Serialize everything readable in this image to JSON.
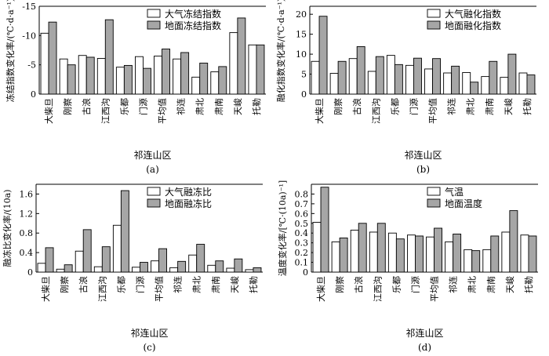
{
  "colors": {
    "series_a": "#ffffff",
    "series_b": "#a6a6a6",
    "stroke": "#000000"
  },
  "chart_data": [
    {
      "type": "bar",
      "panel_label": "(a)",
      "xlabel": "祁连山区",
      "ylabel": "冻结指数变化率/(℃·d·a⁻¹)",
      "ylim": [
        0,
        -15
      ],
      "yticks": [
        0,
        -5,
        -10,
        -15
      ],
      "y_reversed": true,
      "categories": [
        "大柴旦",
        "刚察",
        "古浪",
        "江西沟",
        "乐都",
        "门源",
        "平均值",
        "祁连",
        "肃北",
        "肃南",
        "天峻",
        "托勒"
      ],
      "series": [
        {
          "name": "大气冻结指数",
          "values": [
            -10.4,
            -6.0,
            -6.6,
            -6.1,
            -4.6,
            -6.4,
            -6.5,
            -6.0,
            -2.9,
            -3.8,
            -10.5,
            -8.4
          ]
        },
        {
          "name": "地面冻结指数",
          "values": [
            -12.3,
            -5.0,
            -6.3,
            -12.7,
            -4.9,
            -4.4,
            -7.7,
            -7.1,
            -5.3,
            -4.7,
            -13.0,
            -8.4
          ]
        }
      ],
      "legend": "top-right"
    },
    {
      "type": "bar",
      "panel_label": "(b)",
      "xlabel": "祁连山区",
      "ylabel": "融化指数变化率/(℃·d·a⁻¹)",
      "ylim": [
        0,
        22
      ],
      "yticks": [
        0,
        5,
        10,
        15,
        20
      ],
      "categories": [
        "大柴旦",
        "刚察",
        "古浪",
        "江西沟",
        "乐都",
        "门源",
        "平均值",
        "祁连",
        "肃北",
        "肃南",
        "天峻",
        "托勒"
      ],
      "series": [
        {
          "name": "大气融化指数",
          "values": [
            8.2,
            5.2,
            8.9,
            5.7,
            9.7,
            7.2,
            6.3,
            5.3,
            5.4,
            4.4,
            4.2,
            5.3
          ]
        },
        {
          "name": "地面融化指数",
          "values": [
            19.5,
            8.2,
            11.9,
            9.4,
            7.4,
            9.0,
            8.9,
            7.0,
            3.0,
            8.2,
            10.0,
            4.8
          ]
        }
      ],
      "legend": "top-right"
    },
    {
      "type": "bar",
      "panel_label": "(c)",
      "xlabel": "祁连山区",
      "ylabel": "融冻比变化率/(10a)",
      "ylim": [
        0,
        1.8
      ],
      "yticks": [
        0,
        0.4,
        0.8,
        1.2,
        1.6
      ],
      "categories": [
        "大柴旦",
        "刚察",
        "古浪",
        "江西沟",
        "乐都",
        "门源",
        "平均值",
        "祁连",
        "肃北",
        "肃南",
        "天峻",
        "托勒"
      ],
      "series": [
        {
          "name": "大气融冻比",
          "values": [
            0.18,
            0.06,
            0.43,
            0.11,
            0.96,
            0.1,
            0.23,
            0.09,
            0.35,
            0.14,
            0.08,
            0.05
          ]
        },
        {
          "name": "地面融冻比",
          "values": [
            0.5,
            0.15,
            0.87,
            0.52,
            1.67,
            0.2,
            0.48,
            0.22,
            0.57,
            0.23,
            0.27,
            0.09
          ]
        }
      ],
      "legend": "top-right"
    },
    {
      "type": "bar",
      "panel_label": "(d)",
      "xlabel": "祁连山区",
      "ylabel": "温度变化率/[℃·(10a)⁻¹]",
      "ylim": [
        0,
        0.9
      ],
      "yticks": [
        0,
        0.1,
        0.2,
        0.3,
        0.4,
        0.5,
        0.6,
        0.7,
        0.8
      ],
      "categories": [
        "大柴旦",
        "刚察",
        "古浪",
        "江西沟",
        "乐都",
        "门源",
        "平均值",
        "祁连",
        "肃北",
        "肃南",
        "天峻",
        "托勒"
      ],
      "series": [
        {
          "name": "气温",
          "values": [
            0.51,
            0.31,
            0.43,
            0.41,
            0.4,
            0.38,
            0.36,
            0.31,
            0.23,
            0.23,
            0.41,
            0.38
          ]
        },
        {
          "name": "地面温度",
          "values": [
            0.87,
            0.35,
            0.5,
            0.5,
            0.34,
            0.37,
            0.45,
            0.39,
            0.22,
            0.37,
            0.63,
            0.37
          ]
        }
      ],
      "legend": "top-left"
    }
  ]
}
